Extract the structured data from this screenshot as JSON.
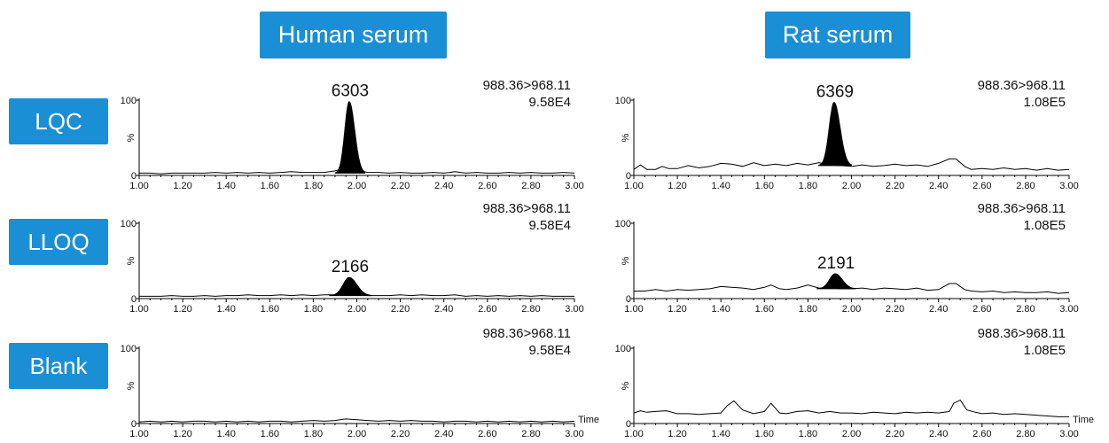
{
  "columns": [
    {
      "label": "Human serum"
    },
    {
      "label": "Rat serum"
    }
  ],
  "rows": [
    {
      "label": "LQC"
    },
    {
      "label": "LLOQ"
    },
    {
      "label": "Blank"
    }
  ],
  "colors": {
    "accent": "#1a8fd6",
    "trace": "#000000"
  },
  "chart_data": [
    {
      "type": "line",
      "panel": "Human serum / LQC",
      "transition": "988.36>968.11",
      "intensity": "9.58E4",
      "xlim": [
        1.0,
        3.0
      ],
      "ylim": [
        0,
        100
      ],
      "ylabel": "%",
      "ytick_top": "100",
      "ytick_bottom": "0",
      "xticks": [
        "1.00",
        "1.20",
        "1.40",
        "1.60",
        "1.80",
        "2.00",
        "2.20",
        "2.40",
        "2.60",
        "2.80",
        "3.00"
      ],
      "xlabel": "",
      "baseline": [
        [
          1.0,
          3
        ],
        [
          1.05,
          3
        ],
        [
          1.1,
          2
        ],
        [
          1.15,
          3
        ],
        [
          1.2,
          3
        ],
        [
          1.25,
          3
        ],
        [
          1.3,
          3
        ],
        [
          1.35,
          4
        ],
        [
          1.4,
          3
        ],
        [
          1.45,
          4
        ],
        [
          1.5,
          3
        ],
        [
          1.55,
          4
        ],
        [
          1.6,
          3
        ],
        [
          1.65,
          4
        ],
        [
          1.7,
          5
        ],
        [
          1.75,
          4
        ],
        [
          1.8,
          4
        ],
        [
          1.85,
          4
        ],
        [
          1.9,
          6
        ],
        [
          1.95,
          10
        ],
        [
          2.0,
          7
        ],
        [
          2.05,
          4
        ],
        [
          2.1,
          4
        ],
        [
          2.15,
          3
        ],
        [
          2.2,
          4
        ],
        [
          2.25,
          3
        ],
        [
          2.3,
          3
        ],
        [
          2.35,
          4
        ],
        [
          2.4,
          3
        ],
        [
          2.45,
          5
        ],
        [
          2.5,
          3
        ],
        [
          2.55,
          4
        ],
        [
          2.6,
          3
        ],
        [
          2.65,
          3
        ],
        [
          2.7,
          4
        ],
        [
          2.75,
          3
        ],
        [
          2.8,
          4
        ],
        [
          2.85,
          3
        ],
        [
          2.9,
          3
        ],
        [
          2.95,
          4
        ],
        [
          3.0,
          3
        ]
      ],
      "peak": {
        "label": "6303",
        "rt": 1.965,
        "height": 98,
        "sigma": 0.02,
        "base": 3
      }
    },
    {
      "type": "line",
      "panel": "Rat serum / LQC",
      "transition": "988.36>968.11",
      "intensity": "1.08E5",
      "xlim": [
        1.0,
        3.0
      ],
      "ylim": [
        0,
        100
      ],
      "ylabel": "%",
      "ytick_top": "100",
      "ytick_bottom": "0",
      "xticks": [
        "1.00",
        "1.20",
        "1.40",
        "1.60",
        "1.80",
        "2.00",
        "2.20",
        "2.40",
        "2.60",
        "2.80",
        "3.00"
      ],
      "xlabel": "",
      "baseline": [
        [
          1.0,
          8
        ],
        [
          1.03,
          14
        ],
        [
          1.06,
          8
        ],
        [
          1.1,
          8
        ],
        [
          1.13,
          12
        ],
        [
          1.16,
          9
        ],
        [
          1.2,
          9
        ],
        [
          1.25,
          13
        ],
        [
          1.3,
          10
        ],
        [
          1.35,
          12
        ],
        [
          1.4,
          16
        ],
        [
          1.45,
          15
        ],
        [
          1.5,
          12
        ],
        [
          1.55,
          17
        ],
        [
          1.6,
          13
        ],
        [
          1.65,
          15
        ],
        [
          1.7,
          13
        ],
        [
          1.75,
          16
        ],
        [
          1.8,
          14
        ],
        [
          1.85,
          17
        ],
        [
          1.9,
          14
        ],
        [
          1.95,
          13
        ],
        [
          2.0,
          12
        ],
        [
          2.05,
          14
        ],
        [
          2.1,
          12
        ],
        [
          2.15,
          13
        ],
        [
          2.2,
          15
        ],
        [
          2.25,
          13
        ],
        [
          2.3,
          14
        ],
        [
          2.35,
          12
        ],
        [
          2.4,
          16
        ],
        [
          2.45,
          22
        ],
        [
          2.48,
          22
        ],
        [
          2.52,
          12
        ],
        [
          2.55,
          8
        ],
        [
          2.6,
          9
        ],
        [
          2.65,
          8
        ],
        [
          2.7,
          10
        ],
        [
          2.75,
          8
        ],
        [
          2.8,
          9
        ],
        [
          2.85,
          7
        ],
        [
          2.9,
          9
        ],
        [
          2.95,
          7
        ],
        [
          3.0,
          8
        ]
      ],
      "peak": {
        "label": "6369",
        "rt": 1.92,
        "height": 97,
        "sigma": 0.022,
        "base": 13
      }
    },
    {
      "type": "line",
      "panel": "Human serum / LLOQ",
      "transition": "988.36>968.11",
      "intensity": "9.58E4",
      "xlim": [
        1.0,
        3.0
      ],
      "ylim": [
        0,
        100
      ],
      "ylabel": "%",
      "ytick_top": "100",
      "ytick_bottom": "0",
      "xticks": [
        "1.00",
        "1.20",
        "1.40",
        "1.60",
        "1.80",
        "2.00",
        "2.20",
        "2.40",
        "2.60",
        "2.80",
        "3.00"
      ],
      "xlabel": "",
      "baseline": [
        [
          1.0,
          3
        ],
        [
          1.05,
          3
        ],
        [
          1.1,
          3
        ],
        [
          1.15,
          4
        ],
        [
          1.2,
          3
        ],
        [
          1.25,
          3
        ],
        [
          1.3,
          4
        ],
        [
          1.35,
          3
        ],
        [
          1.4,
          4
        ],
        [
          1.45,
          4
        ],
        [
          1.5,
          5
        ],
        [
          1.55,
          4
        ],
        [
          1.6,
          4
        ],
        [
          1.65,
          5
        ],
        [
          1.7,
          4
        ],
        [
          1.75,
          5
        ],
        [
          1.8,
          4
        ],
        [
          1.85,
          5
        ],
        [
          1.9,
          5
        ],
        [
          1.95,
          5
        ],
        [
          2.0,
          5
        ],
        [
          2.05,
          4
        ],
        [
          2.1,
          4
        ],
        [
          2.15,
          4
        ],
        [
          2.2,
          5
        ],
        [
          2.25,
          4
        ],
        [
          2.3,
          5
        ],
        [
          2.35,
          4
        ],
        [
          2.4,
          4
        ],
        [
          2.45,
          5
        ],
        [
          2.5,
          3
        ],
        [
          2.55,
          4
        ],
        [
          2.6,
          3
        ],
        [
          2.65,
          4
        ],
        [
          2.7,
          3
        ],
        [
          2.75,
          4
        ],
        [
          2.8,
          3
        ],
        [
          2.85,
          4
        ],
        [
          2.9,
          3
        ],
        [
          2.95,
          3
        ],
        [
          3.0,
          3
        ]
      ],
      "peak": {
        "label": "2166",
        "rt": 1.965,
        "height": 28,
        "sigma": 0.028,
        "base": 4
      }
    },
    {
      "type": "line",
      "panel": "Rat serum / LLOQ",
      "transition": "988.36>968.11",
      "intensity": "1.08E5",
      "xlim": [
        1.0,
        3.0
      ],
      "ylim": [
        0,
        100
      ],
      "ylabel": "%",
      "ytick_top": "100",
      "ytick_bottom": "0",
      "xticks": [
        "1.00",
        "1.20",
        "1.40",
        "1.60",
        "1.80",
        "2.00",
        "2.20",
        "2.40",
        "2.60",
        "2.80",
        "3.00"
      ],
      "xlabel": "",
      "baseline": [
        [
          1.0,
          10
        ],
        [
          1.05,
          10
        ],
        [
          1.1,
          12
        ],
        [
          1.15,
          10
        ],
        [
          1.2,
          12
        ],
        [
          1.25,
          11
        ],
        [
          1.3,
          12
        ],
        [
          1.35,
          13
        ],
        [
          1.4,
          16
        ],
        [
          1.45,
          15
        ],
        [
          1.5,
          14
        ],
        [
          1.55,
          12
        ],
        [
          1.6,
          15
        ],
        [
          1.63,
          18
        ],
        [
          1.67,
          13
        ],
        [
          1.7,
          12
        ],
        [
          1.75,
          14
        ],
        [
          1.8,
          18
        ],
        [
          1.85,
          14
        ],
        [
          1.9,
          14
        ],
        [
          1.95,
          13
        ],
        [
          2.0,
          13
        ],
        [
          2.05,
          14
        ],
        [
          2.1,
          12
        ],
        [
          2.15,
          14
        ],
        [
          2.2,
          13
        ],
        [
          2.25,
          12
        ],
        [
          2.3,
          14
        ],
        [
          2.35,
          11
        ],
        [
          2.4,
          12
        ],
        [
          2.45,
          20
        ],
        [
          2.48,
          20
        ],
        [
          2.52,
          12
        ],
        [
          2.55,
          10
        ],
        [
          2.6,
          9
        ],
        [
          2.65,
          10
        ],
        [
          2.7,
          8
        ],
        [
          2.75,
          9
        ],
        [
          2.8,
          8
        ],
        [
          2.85,
          8
        ],
        [
          2.9,
          9
        ],
        [
          2.95,
          7
        ],
        [
          3.0,
          8
        ]
      ],
      "peak": {
        "label": "2191",
        "rt": 1.925,
        "height": 33,
        "sigma": 0.026,
        "base": 13
      }
    },
    {
      "type": "line",
      "panel": "Human serum / Blank",
      "transition": "988.36>968.11",
      "intensity": "9.58E4",
      "xlim": [
        1.0,
        3.0
      ],
      "ylim": [
        0,
        100
      ],
      "ylabel": "%",
      "ytick_top": "100",
      "ytick_bottom": "0",
      "xticks": [
        "1.00",
        "1.20",
        "1.40",
        "1.60",
        "1.80",
        "2.00",
        "2.20",
        "2.40",
        "2.60",
        "2.80",
        "3.00"
      ],
      "xlabel": "Time",
      "baseline": [
        [
          1.0,
          2
        ],
        [
          1.05,
          3
        ],
        [
          1.1,
          2
        ],
        [
          1.15,
          3
        ],
        [
          1.2,
          2
        ],
        [
          1.25,
          3
        ],
        [
          1.3,
          3
        ],
        [
          1.35,
          2
        ],
        [
          1.4,
          3
        ],
        [
          1.45,
          2
        ],
        [
          1.5,
          3
        ],
        [
          1.55,
          2
        ],
        [
          1.6,
          3
        ],
        [
          1.65,
          3
        ],
        [
          1.7,
          2
        ],
        [
          1.75,
          3
        ],
        [
          1.8,
          4
        ],
        [
          1.85,
          3
        ],
        [
          1.9,
          4
        ],
        [
          1.95,
          6
        ],
        [
          2.0,
          5
        ],
        [
          2.05,
          4
        ],
        [
          2.1,
          3
        ],
        [
          2.15,
          4
        ],
        [
          2.2,
          3
        ],
        [
          2.25,
          4
        ],
        [
          2.3,
          3
        ],
        [
          2.35,
          3
        ],
        [
          2.4,
          2
        ],
        [
          2.45,
          3
        ],
        [
          2.5,
          3
        ],
        [
          2.55,
          2
        ],
        [
          2.6,
          3
        ],
        [
          2.65,
          2
        ],
        [
          2.7,
          3
        ],
        [
          2.75,
          2
        ],
        [
          2.8,
          3
        ],
        [
          2.85,
          2
        ],
        [
          2.9,
          3
        ],
        [
          2.95,
          2
        ],
        [
          3.0,
          3
        ]
      ],
      "peak": null
    },
    {
      "type": "line",
      "panel": "Rat serum / Blank",
      "transition": "988.36>968.11",
      "intensity": "1.08E5",
      "xlim": [
        1.0,
        3.0
      ],
      "ylim": [
        0,
        100
      ],
      "ylabel": "%",
      "ytick_top": "100",
      "ytick_bottom": "0",
      "xticks": [
        "1.00",
        "1.20",
        "1.40",
        "1.60",
        "1.80",
        "2.00",
        "2.20",
        "2.40",
        "2.60",
        "2.80",
        "3.00"
      ],
      "xlabel": "Time",
      "baseline": [
        [
          1.0,
          14
        ],
        [
          1.03,
          17
        ],
        [
          1.06,
          15
        ],
        [
          1.1,
          16
        ],
        [
          1.15,
          17
        ],
        [
          1.2,
          13
        ],
        [
          1.25,
          13
        ],
        [
          1.3,
          12
        ],
        [
          1.35,
          13
        ],
        [
          1.4,
          14
        ],
        [
          1.43,
          24
        ],
        [
          1.46,
          30
        ],
        [
          1.5,
          18
        ],
        [
          1.55,
          13
        ],
        [
          1.6,
          16
        ],
        [
          1.63,
          27
        ],
        [
          1.67,
          14
        ],
        [
          1.7,
          13
        ],
        [
          1.75,
          16
        ],
        [
          1.8,
          17
        ],
        [
          1.85,
          14
        ],
        [
          1.9,
          16
        ],
        [
          1.95,
          14
        ],
        [
          2.0,
          14
        ],
        [
          2.05,
          13
        ],
        [
          2.1,
          15
        ],
        [
          2.15,
          14
        ],
        [
          2.2,
          13
        ],
        [
          2.25,
          15
        ],
        [
          2.3,
          14
        ],
        [
          2.35,
          15
        ],
        [
          2.4,
          14
        ],
        [
          2.45,
          16
        ],
        [
          2.47,
          27
        ],
        [
          2.5,
          31
        ],
        [
          2.53,
          18
        ],
        [
          2.57,
          15
        ],
        [
          2.6,
          13
        ],
        [
          2.65,
          14
        ],
        [
          2.7,
          12
        ],
        [
          2.75,
          13
        ],
        [
          2.8,
          12
        ],
        [
          2.85,
          11
        ],
        [
          2.9,
          10
        ],
        [
          2.95,
          9
        ],
        [
          3.0,
          9
        ]
      ],
      "peak": null
    }
  ]
}
